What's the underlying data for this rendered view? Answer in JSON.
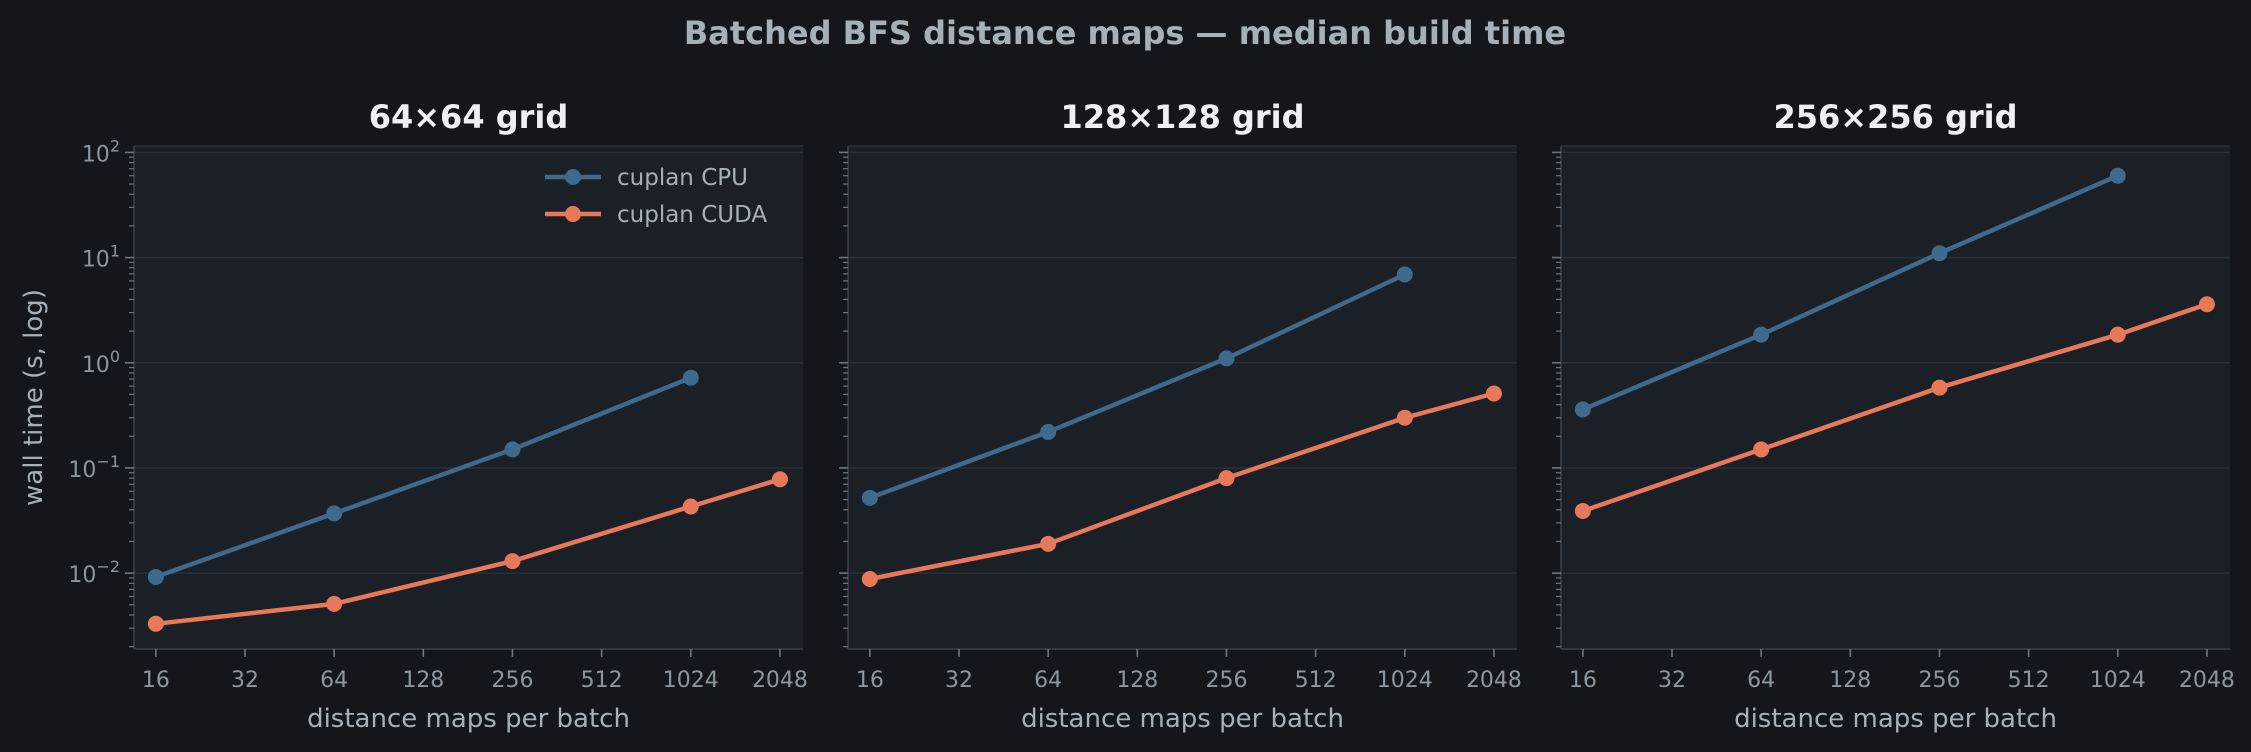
{
  "figure": {
    "title": "Batched BFS distance maps — median build time"
  },
  "legend": {
    "placement": "upper-right of first panel",
    "entries": [
      "cuplan CPU",
      "cuplan CUDA"
    ]
  },
  "colors": {
    "background": "#13171b",
    "panel": "#1b2027",
    "grid": "#2a3038",
    "cpu": "#3e6a8e",
    "cuda": "#e8785a",
    "title": "#eef1f3",
    "label": "#a6b0b8",
    "tick": "#8c969f"
  },
  "chart_data": [
    {
      "type": "line",
      "title": "64×64 grid",
      "xlabel": "distance maps per batch",
      "ylabel": "wall time (s, log)",
      "xscale": "log2",
      "yscale": "log10",
      "xticks": [
        "16",
        "32",
        "64",
        "128",
        "256",
        "512",
        "1024",
        "2048"
      ],
      "yticks": [
        {
          "base": "10",
          "exp": "2"
        },
        {
          "base": "10",
          "exp": "1"
        },
        {
          "base": "10",
          "exp": "0"
        },
        {
          "base": "10",
          "exp": "−1"
        },
        {
          "base": "10",
          "exp": "−2"
        }
      ],
      "xlim": [
        13.5,
        2450
      ],
      "ylim": [
        0.0019,
        115
      ],
      "grid": "horizontal",
      "series": [
        {
          "name": "cuplan CPU",
          "x": [
            16,
            64,
            256,
            1024
          ],
          "y": [
            0.0092,
            0.037,
            0.15,
            0.72
          ]
        },
        {
          "name": "cuplan CUDA",
          "x": [
            16,
            64,
            256,
            1024,
            2048
          ],
          "y": [
            0.0033,
            0.0051,
            0.013,
            0.043,
            0.078
          ]
        }
      ]
    },
    {
      "type": "line",
      "title": "128×128 grid",
      "xlabel": "distance maps per batch",
      "ylabel": "",
      "xscale": "log2",
      "yscale": "log10",
      "xticks": [
        "16",
        "32",
        "64",
        "128",
        "256",
        "512",
        "1024",
        "2048"
      ],
      "yticks": [],
      "xlim": [
        13.5,
        2450
      ],
      "ylim": [
        0.0019,
        115
      ],
      "grid": "horizontal",
      "series": [
        {
          "name": "cuplan CPU",
          "x": [
            16,
            64,
            256,
            1024
          ],
          "y": [
            0.052,
            0.22,
            1.1,
            6.9
          ]
        },
        {
          "name": "cuplan CUDA",
          "x": [
            16,
            64,
            256,
            1024,
            2048
          ],
          "y": [
            0.0088,
            0.019,
            0.08,
            0.3,
            0.51
          ]
        }
      ]
    },
    {
      "type": "line",
      "title": "256×256 grid",
      "xlabel": "distance maps per batch",
      "ylabel": "",
      "xscale": "log2",
      "yscale": "log10",
      "xticks": [
        "16",
        "32",
        "64",
        "128",
        "256",
        "512",
        "1024",
        "2048"
      ],
      "yticks": [],
      "xlim": [
        13.5,
        2450
      ],
      "ylim": [
        0.0019,
        115
      ],
      "grid": "horizontal",
      "series": [
        {
          "name": "cuplan CPU",
          "x": [
            16,
            64,
            256,
            1024
          ],
          "y": [
            0.36,
            1.85,
            11,
            60
          ]
        },
        {
          "name": "cuplan CUDA",
          "x": [
            16,
            64,
            256,
            1024,
            2048
          ],
          "y": [
            0.039,
            0.15,
            0.58,
            1.85,
            3.6
          ]
        }
      ]
    }
  ]
}
